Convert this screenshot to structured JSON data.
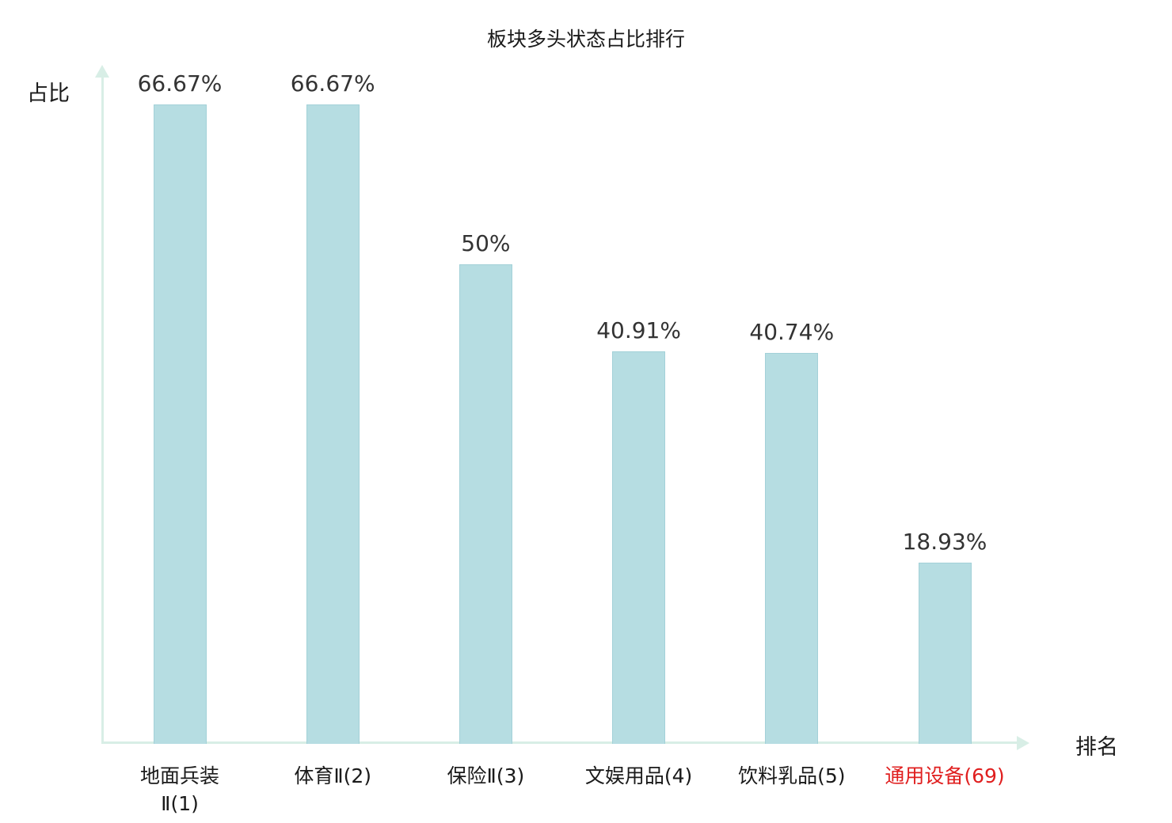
{
  "chart_data": {
    "type": "bar",
    "title": "板块多头状态占比排行",
    "ylabel": "占比",
    "xlabel": "排名",
    "categories": [
      "地面兵装\nⅡ(1)",
      "体育Ⅱ(2)",
      "保险Ⅱ(3)",
      "文娱用品(4)",
      "饮料乳品(5)",
      "通用设备(69)"
    ],
    "values": [
      66.67,
      66.67,
      50,
      40.91,
      40.74,
      18.93
    ],
    "value_labels": [
      "66.67%",
      "66.67%",
      "50%",
      "40.91%",
      "40.74%",
      "18.93%"
    ],
    "unit": "%",
    "grid": false,
    "legend": "none",
    "highlight_index": 5,
    "colors": {
      "bar_fill": "#b6dde2",
      "bar_border": "#a3d1d8",
      "axis": "#d8eee6",
      "value_label": "#333333",
      "category_label": "#1a1a1a",
      "highlight_label": "#e01f1f",
      "title": "#1a1a1a"
    }
  }
}
